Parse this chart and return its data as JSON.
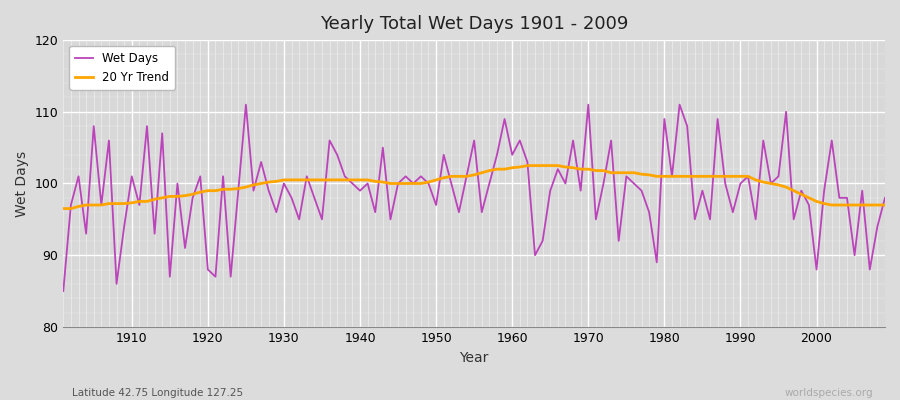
{
  "title": "Yearly Total Wet Days 1901 - 2009",
  "xlabel": "Year",
  "ylabel": "Wet Days",
  "ylim": [
    80,
    120
  ],
  "xlim": [
    1901,
    2009
  ],
  "yticks": [
    80,
    90,
    100,
    110,
    120
  ],
  "xticks": [
    1910,
    1920,
    1930,
    1940,
    1950,
    1960,
    1970,
    1980,
    1990,
    2000
  ],
  "wet_days_color": "#BB44BB",
  "trend_color": "#FFA500",
  "fig_bg_color": "#DCDCDC",
  "plot_bg_color": "#D8D8D8",
  "wet_days_label": "Wet Days",
  "trend_label": "20 Yr Trend",
  "subtitle_left": "Latitude 42.75 Longitude 127.25",
  "subtitle_right": "worldspecies.org",
  "years": [
    1901,
    1902,
    1903,
    1904,
    1905,
    1906,
    1907,
    1908,
    1909,
    1910,
    1911,
    1912,
    1913,
    1914,
    1915,
    1916,
    1917,
    1918,
    1919,
    1920,
    1921,
    1922,
    1923,
    1924,
    1925,
    1926,
    1927,
    1928,
    1929,
    1930,
    1931,
    1932,
    1933,
    1934,
    1935,
    1936,
    1937,
    1938,
    1939,
    1940,
    1941,
    1942,
    1943,
    1944,
    1945,
    1946,
    1947,
    1948,
    1949,
    1950,
    1951,
    1952,
    1953,
    1954,
    1955,
    1956,
    1957,
    1958,
    1959,
    1960,
    1961,
    1962,
    1963,
    1964,
    1965,
    1966,
    1967,
    1968,
    1969,
    1970,
    1971,
    1972,
    1973,
    1974,
    1975,
    1976,
    1977,
    1978,
    1979,
    1980,
    1981,
    1982,
    1983,
    1984,
    1985,
    1986,
    1987,
    1988,
    1989,
    1990,
    1991,
    1992,
    1993,
    1994,
    1995,
    1996,
    1997,
    1998,
    1999,
    2000,
    2001,
    2002,
    2003,
    2004,
    2005,
    2006,
    2007,
    2008,
    2009
  ],
  "wet_days": [
    85,
    97,
    101,
    93,
    108,
    97,
    106,
    86,
    94,
    101,
    97,
    108,
    93,
    107,
    87,
    100,
    91,
    98,
    101,
    88,
    87,
    101,
    87,
    99,
    111,
    99,
    103,
    99,
    96,
    100,
    98,
    95,
    101,
    98,
    95,
    106,
    104,
    101,
    100,
    99,
    100,
    96,
    105,
    95,
    100,
    101,
    100,
    101,
    100,
    97,
    104,
    100,
    96,
    101,
    106,
    96,
    100,
    104,
    109,
    104,
    106,
    103,
    90,
    92,
    99,
    102,
    100,
    106,
    99,
    111,
    95,
    100,
    106,
    92,
    101,
    100,
    99,
    96,
    89,
    109,
    101,
    111,
    108,
    95,
    99,
    95,
    109,
    100,
    96,
    100,
    101,
    95,
    106,
    100,
    101,
    110,
    95,
    99,
    97,
    88,
    99,
    106,
    98,
    98,
    90,
    99,
    88,
    94,
    98
  ],
  "trend": [
    96.5,
    96.5,
    96.8,
    97.0,
    97.0,
    97.0,
    97.2,
    97.2,
    97.2,
    97.3,
    97.5,
    97.5,
    97.8,
    98.0,
    98.2,
    98.2,
    98.3,
    98.5,
    98.8,
    99.0,
    99.0,
    99.2,
    99.2,
    99.3,
    99.5,
    99.8,
    100.0,
    100.2,
    100.3,
    100.5,
    100.5,
    100.5,
    100.5,
    100.5,
    100.5,
    100.5,
    100.5,
    100.5,
    100.5,
    100.5,
    100.5,
    100.3,
    100.2,
    100.0,
    100.0,
    100.0,
    100.0,
    100.0,
    100.2,
    100.5,
    100.8,
    101.0,
    101.0,
    101.0,
    101.2,
    101.5,
    101.8,
    102.0,
    102.0,
    102.2,
    102.3,
    102.5,
    102.5,
    102.5,
    102.5,
    102.5,
    102.3,
    102.2,
    102.0,
    102.0,
    101.8,
    101.8,
    101.5,
    101.5,
    101.5,
    101.5,
    101.3,
    101.2,
    101.0,
    101.0,
    101.0,
    101.0,
    101.0,
    101.0,
    101.0,
    101.0,
    101.0,
    101.0,
    101.0,
    101.0,
    101.0,
    100.5,
    100.2,
    100.0,
    99.8,
    99.5,
    99.0,
    98.5,
    98.0,
    97.5,
    97.2,
    97.0,
    97.0,
    97.0,
    97.0,
    97.0,
    97.0,
    97.0,
    97.0
  ]
}
